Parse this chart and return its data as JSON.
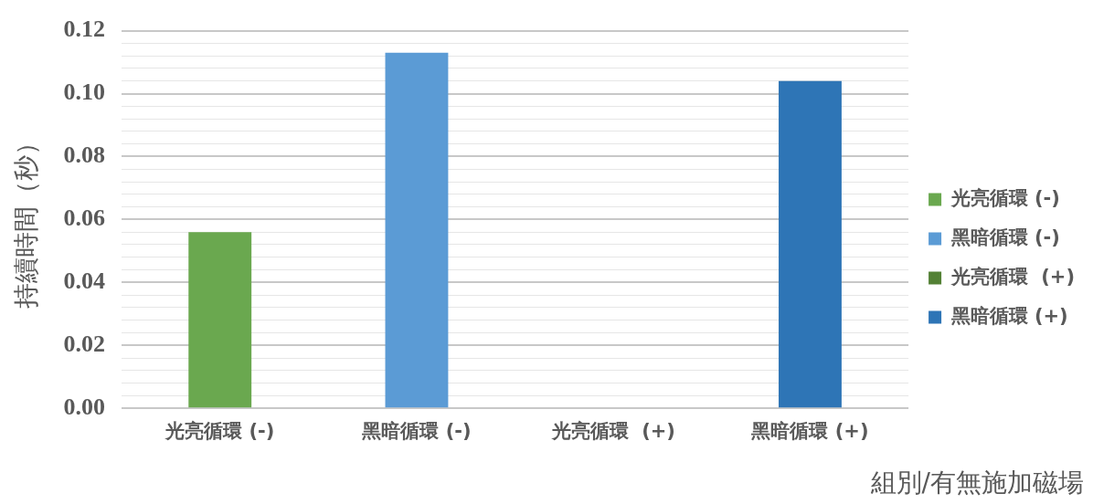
{
  "chart_data": {
    "type": "bar",
    "xlabel": "組別/有無施加磁場",
    "ylabel": "持續時間（秒）",
    "categories": [
      "光亮循環 (-)",
      "黑暗循環 (-)",
      "光亮循環  (+)",
      "黑暗循環 (+)"
    ],
    "series": [
      {
        "name": "光亮循環 (-)",
        "color": "#6aa84f",
        "values": [
          0.056,
          null,
          null,
          null
        ]
      },
      {
        "name": "黑暗循環 (-)",
        "color": "#5b9bd5",
        "values": [
          null,
          0.113,
          null,
          null
        ]
      },
      {
        "name": "光亮循環  (+)",
        "color": "#538135",
        "values": [
          null,
          null,
          0,
          null
        ]
      },
      {
        "name": "黑暗循環 (+)",
        "color": "#2e75b6",
        "values": [
          null,
          null,
          null,
          0.104
        ]
      }
    ],
    "ylim": [
      0,
      0.12
    ],
    "yticks": [
      {
        "value": 0,
        "label": "0.00"
      },
      {
        "value": 0.004,
        "label": null
      },
      {
        "value": 0.008,
        "label": null
      },
      {
        "value": 0.012,
        "label": null
      },
      {
        "value": 0.016,
        "label": null
      },
      {
        "value": 0.02,
        "label": "0.02"
      },
      {
        "value": 0.024,
        "label": null
      },
      {
        "value": 0.028,
        "label": null
      },
      {
        "value": 0.032,
        "label": null
      },
      {
        "value": 0.036,
        "label": null
      },
      {
        "value": 0.04,
        "label": "0.04"
      },
      {
        "value": 0.044,
        "label": null
      },
      {
        "value": 0.048,
        "label": null
      },
      {
        "value": 0.052,
        "label": null
      },
      {
        "value": 0.056,
        "label": null
      },
      {
        "value": 0.06,
        "label": "0.06"
      },
      {
        "value": 0.064,
        "label": null
      },
      {
        "value": 0.068,
        "label": null
      },
      {
        "value": 0.072,
        "label": null
      },
      {
        "value": 0.076,
        "label": null
      },
      {
        "value": 0.08,
        "label": "0.08"
      },
      {
        "value": 0.084,
        "label": null
      },
      {
        "value": 0.088,
        "label": null
      },
      {
        "value": 0.092,
        "label": null
      },
      {
        "value": 0.096,
        "label": null
      },
      {
        "value": 0.1,
        "label": "0.10"
      },
      {
        "value": 0.104,
        "label": null
      },
      {
        "value": 0.108,
        "label": null
      },
      {
        "value": 0.112,
        "label": null
      },
      {
        "value": 0.116,
        "label": null
      },
      {
        "value": 0.12,
        "label": "0.12"
      }
    ],
    "grid": "y",
    "legend": "right"
  }
}
